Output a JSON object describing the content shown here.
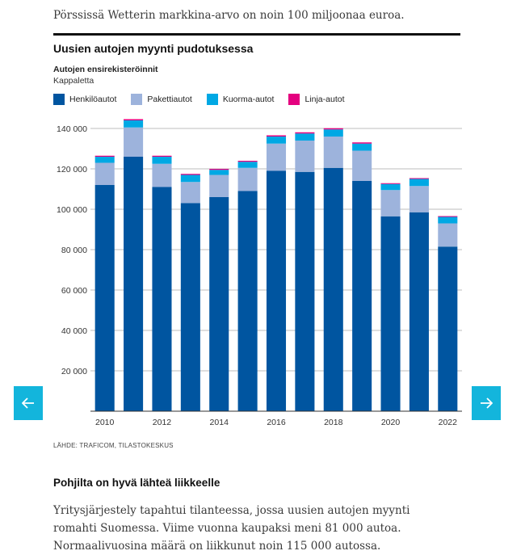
{
  "article": {
    "intro": "Pörssissä Wetterin markkina-arvo on noin 100 miljoonaa euroa.",
    "section_heading": "Pohjilta on hyvä lähteä liikkeelle",
    "body": "Yritysjärjestely tapahtui tilanteessa, jossa uusien autojen myynti romahti Suomessa. Viime vuonna kaupaksi meni 81 000 autoa. Normaalivuosina määrä on liikkunut noin 115 000 autossa."
  },
  "navigation": {
    "prev_icon": "arrow-left-icon",
    "next_icon": "arrow-right-icon",
    "color": "#13b5dc"
  },
  "colors": {
    "henkiloautot": "#0055a0",
    "pakettiautot": "#9db3dc",
    "kuorma_autot": "#00a8e4",
    "linja_autot": "#e4007f"
  },
  "chart_data": {
    "type": "bar",
    "stacked": true,
    "title": "Uusien autojen myynti pudotuksessa",
    "subtitle": "Autojen ensirekisteröinnit",
    "unit": "Kappaletta",
    "source": "LÄHDE: TRAFICOM, TILASTOKESKUS",
    "categories": [
      "2010",
      "2011",
      "2012",
      "2013",
      "2014",
      "2015",
      "2016",
      "2017",
      "2018",
      "2019",
      "2020",
      "2021",
      "2022"
    ],
    "x_tick_labels": [
      "2010",
      "2012",
      "2014",
      "2016",
      "2018",
      "2020",
      "2022"
    ],
    "y_tick_labels": [
      "20 000",
      "40 000",
      "60 000",
      "80 000",
      "100 000",
      "120 000",
      "140 000"
    ],
    "y_ticks": [
      20000,
      40000,
      60000,
      80000,
      100000,
      120000,
      140000
    ],
    "ylim": [
      0,
      140000
    ],
    "grid": true,
    "legend_position": "top-left",
    "series": [
      {
        "name": "Henkilöautot",
        "color": "#0055a0",
        "values": [
          112000,
          126000,
          111000,
          103000,
          106000,
          109000,
          119000,
          118500,
          120500,
          114000,
          96500,
          98500,
          81500
        ]
      },
      {
        "name": "Pakettiautot",
        "color": "#9db3dc",
        "values": [
          11000,
          14500,
          11500,
          10500,
          11000,
          11500,
          13500,
          15500,
          15500,
          15000,
          13000,
          13000,
          11500
        ]
      },
      {
        "name": "Kuorma-autot",
        "color": "#00a8e4",
        "values": [
          3000,
          3500,
          3500,
          3500,
          2500,
          3000,
          3500,
          3500,
          3500,
          3500,
          3000,
          3500,
          3200
        ]
      },
      {
        "name": "Linja-autot",
        "color": "#e4007f",
        "values": [
          500,
          600,
          500,
          500,
          500,
          500,
          600,
          600,
          600,
          600,
          400,
          400,
          400
        ]
      }
    ]
  }
}
